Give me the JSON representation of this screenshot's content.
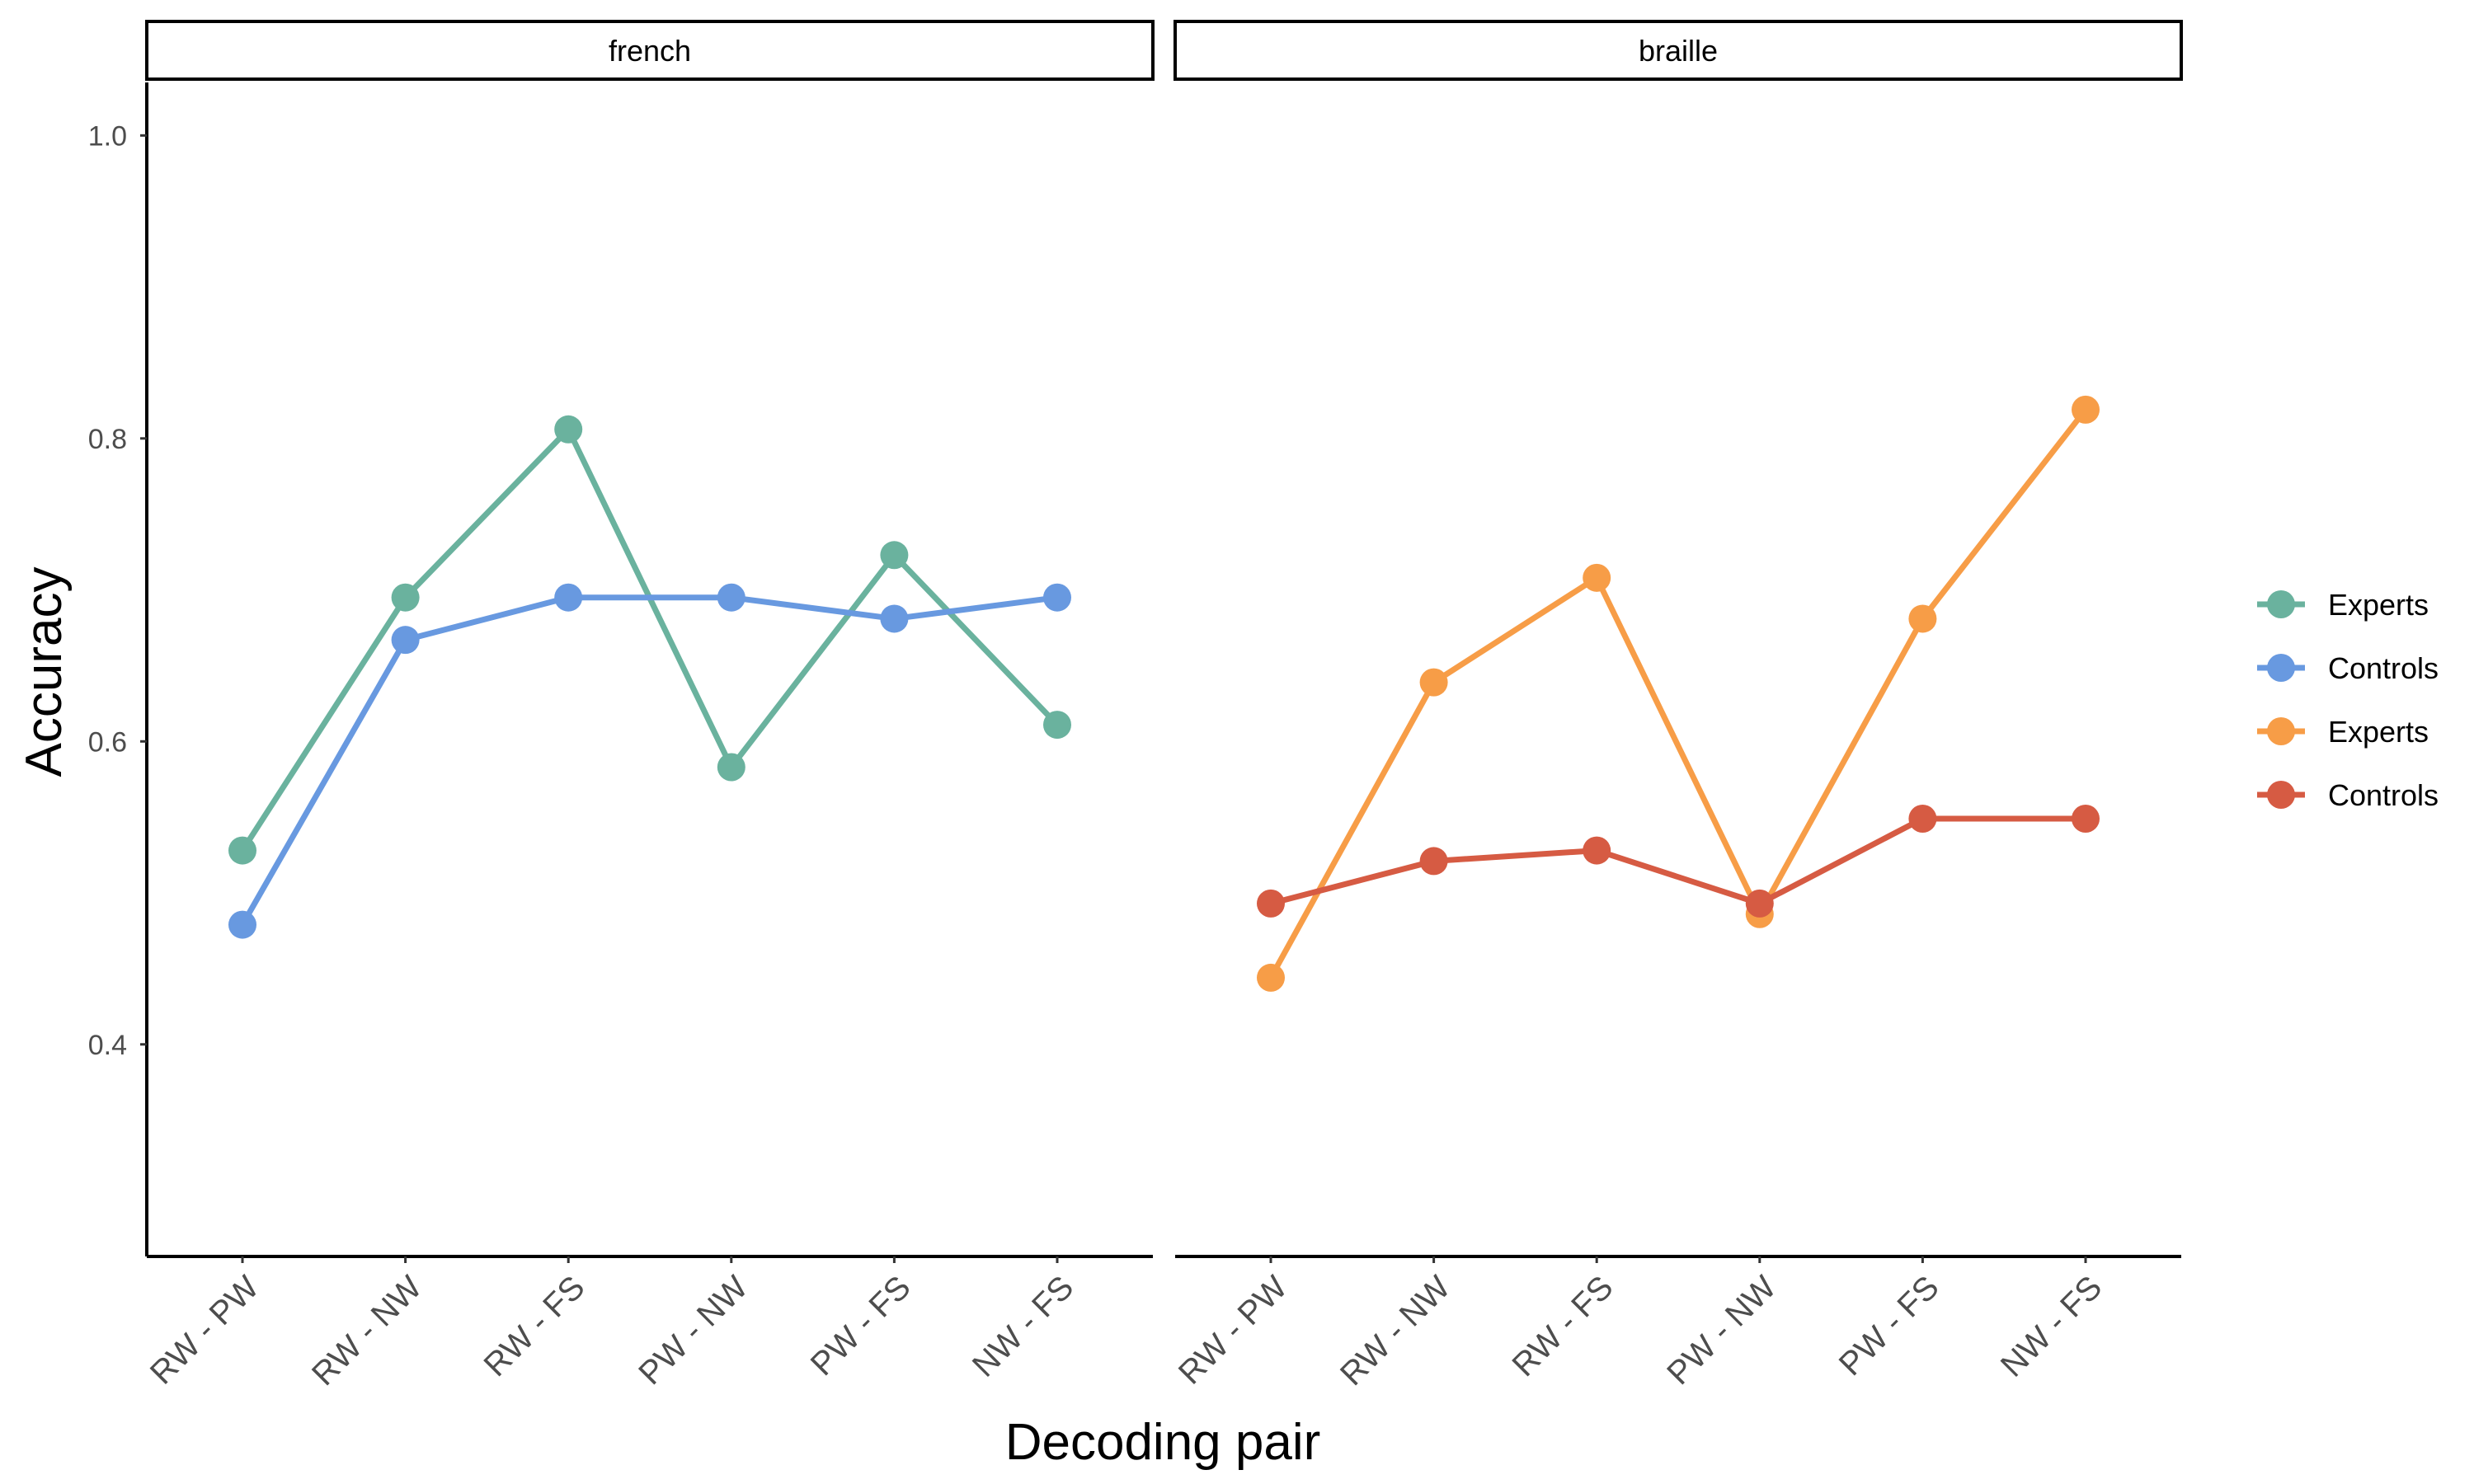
{
  "chart_data": {
    "type": "line",
    "xlabel": "Decoding pair",
    "ylabel": "Accuracy",
    "ylim": [
      0.26,
      1.035
    ],
    "yticks": [
      0.4,
      0.6,
      0.8,
      1.0
    ],
    "ytick_labels": [
      "0.4",
      "0.6",
      "0.8",
      "1.0"
    ],
    "categories": [
      "RW - PW",
      "RW - NW",
      "RW - FS",
      "PW - NW",
      "PW - FS",
      "NW - FS"
    ],
    "grid": false,
    "legend_position": "right",
    "panels": [
      {
        "strip_label": "french",
        "series": [
          {
            "name": "Experts",
            "color": "#6ab29e",
            "values": [
              0.528,
              0.695,
              0.806,
              0.583,
              0.723,
              0.611
            ]
          },
          {
            "name": "Controls",
            "color": "#6899e0",
            "values": [
              0.479,
              0.667,
              0.695,
              0.695,
              0.681,
              0.695
            ]
          }
        ]
      },
      {
        "strip_label": "braille",
        "series": [
          {
            "name": "Experts",
            "color": "#f79d47",
            "values": [
              0.444,
              0.639,
              0.708,
              0.486,
              0.681,
              0.819
            ]
          },
          {
            "name": "Controls",
            "color": "#d65b43",
            "values": [
              0.493,
              0.521,
              0.528,
              0.493,
              0.549,
              0.549
            ]
          }
        ]
      }
    ],
    "legend": [
      {
        "label": "Experts",
        "color": "#6ab29e"
      },
      {
        "label": "Controls",
        "color": "#6899e0"
      },
      {
        "label": "Experts",
        "color": "#f79d47"
      },
      {
        "label": "Controls",
        "color": "#d65b43"
      }
    ]
  }
}
